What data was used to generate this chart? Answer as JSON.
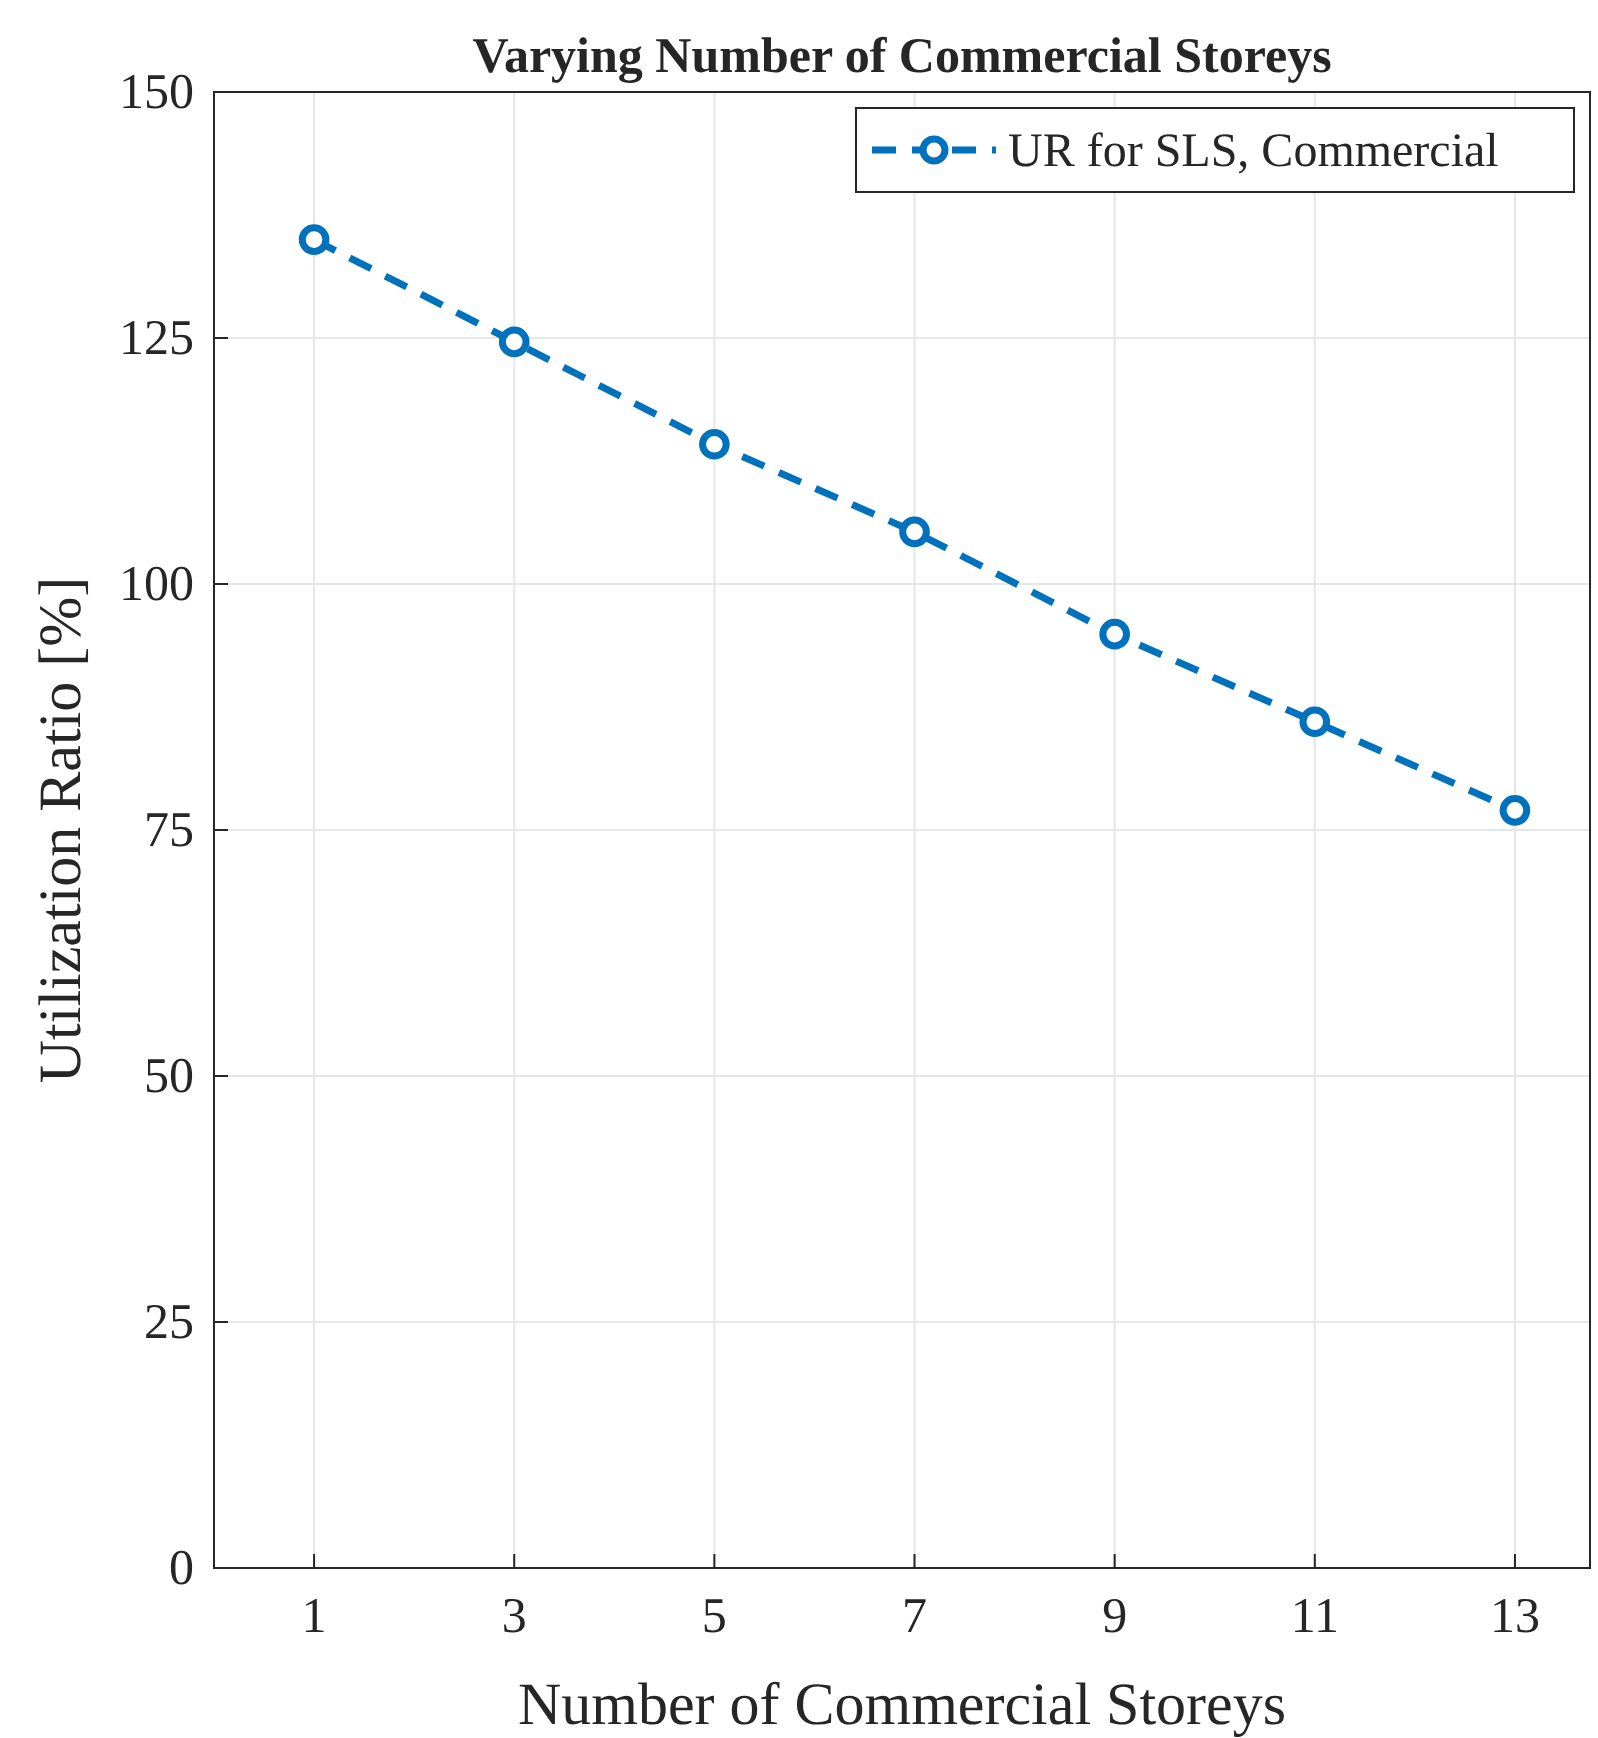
{
  "chart_data": {
    "type": "line",
    "title": "Varying Number of Commercial Storeys",
    "xlabel": "Number of Commercial Storeys",
    "ylabel": "Utilization Ratio [%]",
    "x": [
      1,
      3,
      5,
      7,
      9,
      11,
      13
    ],
    "series": [
      {
        "name": "UR for SLS, Commercial",
        "color": "#0072bd",
        "values": [
          135,
          124.6,
          114.2,
          105.3,
          94.9,
          86.0,
          77.0
        ]
      }
    ],
    "xlim": [
      0,
      13.75
    ],
    "xticks": [
      1,
      3,
      5,
      7,
      9,
      11,
      13
    ],
    "ylim": [
      0,
      150
    ],
    "yticks": [
      0,
      25,
      50,
      75,
      100,
      125,
      150
    ],
    "grid": true,
    "legend": "top right",
    "marker": "circle",
    "line_style": "dashed"
  }
}
